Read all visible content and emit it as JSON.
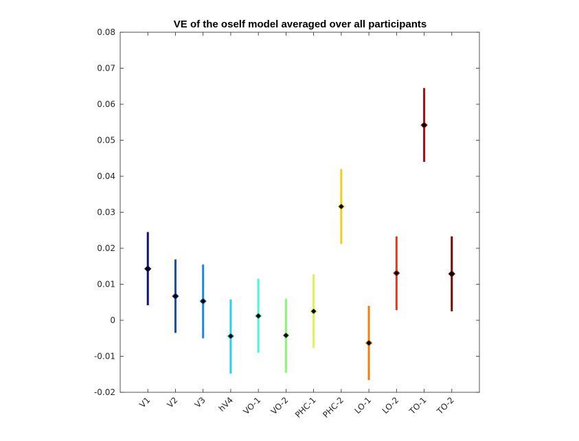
{
  "chart_data": {
    "type": "scatter",
    "title": "VE of the oself model averaged over all participants",
    "xlabel": "",
    "ylabel": "",
    "categories": [
      "V1",
      "V2",
      "V3",
      "hV4",
      "VO-1",
      "VO-2",
      "PHC-1",
      "PHC-2",
      "LO-1",
      "LO-2",
      "TO-1",
      "TO-2"
    ],
    "values": [
      0.0143,
      0.0067,
      0.0053,
      -0.0044,
      0.0012,
      -0.0042,
      0.0025,
      0.0316,
      -0.0063,
      0.0131,
      0.0542,
      0.0129
    ],
    "error_low": [
      0.0042,
      -0.0035,
      -0.005,
      -0.0148,
      -0.009,
      -0.0146,
      -0.0077,
      0.0212,
      -0.0166,
      0.0028,
      0.044,
      0.0025
    ],
    "error_high": [
      0.0245,
      0.0169,
      0.0155,
      0.0058,
      0.0115,
      0.006,
      0.0128,
      0.042,
      0.004,
      0.0233,
      0.0645,
      0.0233
    ],
    "colors": [
      "#0c0f8c",
      "#1b4cb4",
      "#1d86e0",
      "#28d0ea",
      "#48f5d4",
      "#90f37a",
      "#ddf746",
      "#f2cf14",
      "#f07c12",
      "#e0381e",
      "#b20c0c",
      "#7a0505"
    ],
    "marker_color": "#000000",
    "ylim": [
      -0.02,
      0.08
    ],
    "yticks": [
      "-0.02",
      "-0.01",
      "0",
      "0.01",
      "0.02",
      "0.03",
      "0.04",
      "0.05",
      "0.06",
      "0.07",
      "0.08"
    ],
    "grid": false,
    "legend": "none"
  }
}
